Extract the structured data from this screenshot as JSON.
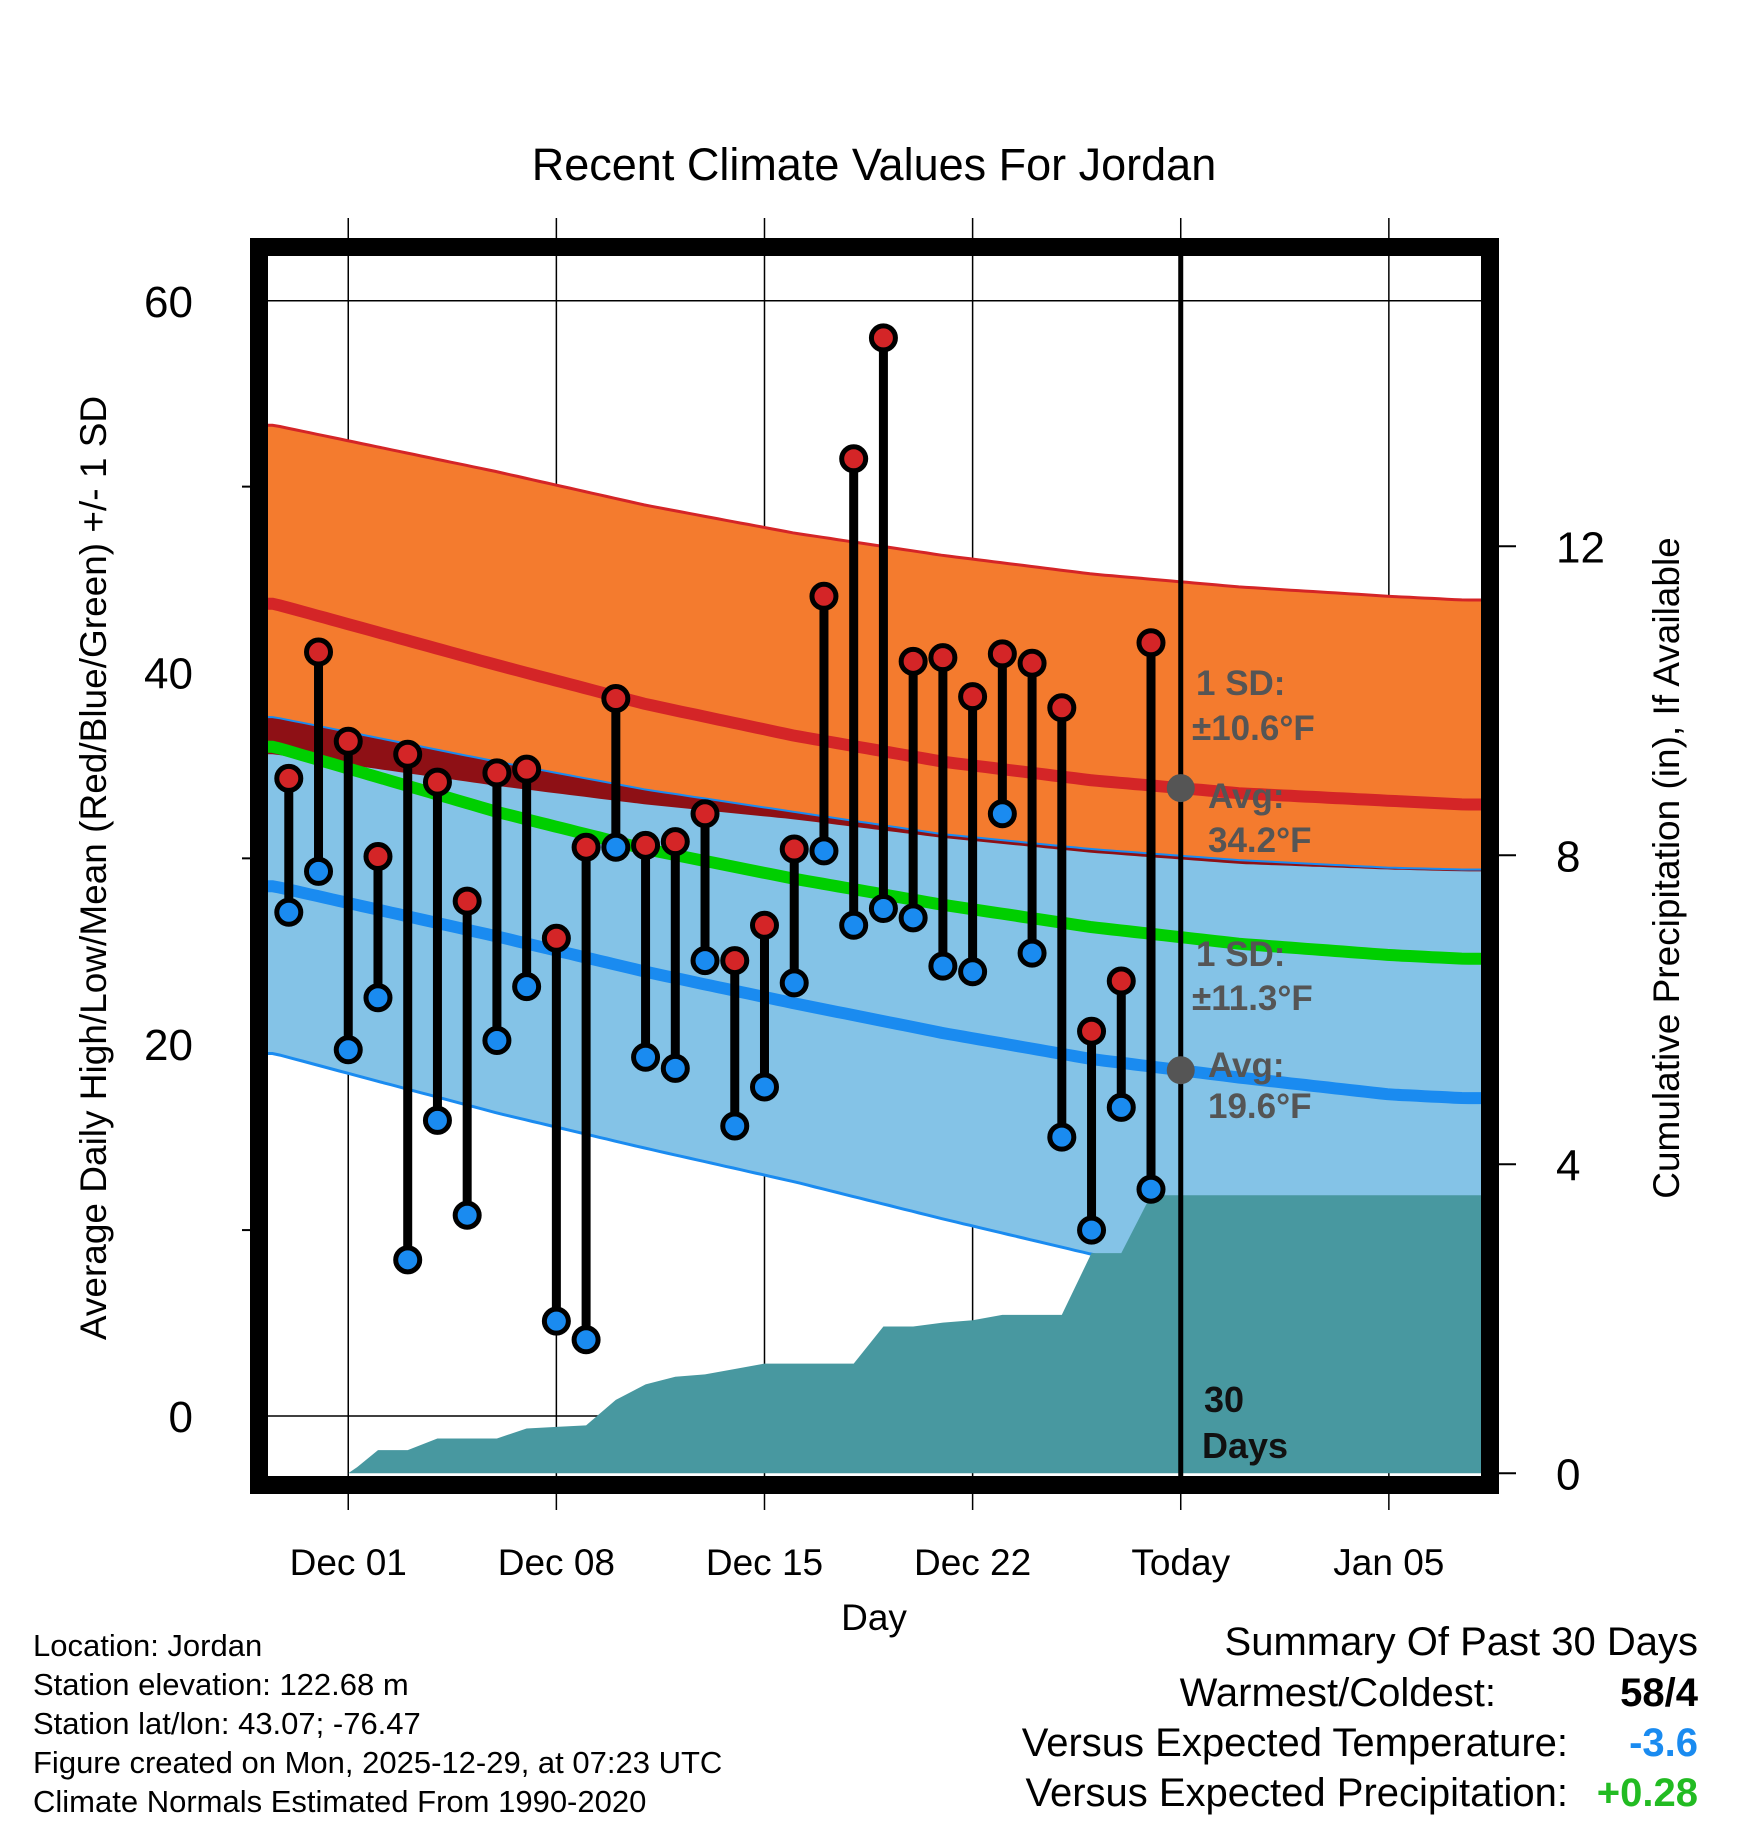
{
  "chart_data": {
    "type": "line",
    "title": "Recent Climate Values For Jordan",
    "xlabel": "Day",
    "ylabel": "Average Daily High/Low/Mean (Red/Blue/Green) +/- 1 SD",
    "y2label": "Cumulative Precipitation (in), If Available",
    "x_tick_labels": [
      {
        "day": 0,
        "label": "Dec 01"
      },
      {
        "day": 7,
        "label": "Dec 08"
      },
      {
        "day": 14,
        "label": "Dec 15"
      },
      {
        "day": 21,
        "label": "Dec 22"
      },
      {
        "day": 28,
        "label": "Today"
      },
      {
        "day": 35,
        "label": "Jan 05"
      }
    ],
    "xlim": [
      -2.8,
      38.2
    ],
    "ylim": [
      -3.5,
      63
    ],
    "y_ticks": [
      0,
      20,
      40,
      60
    ],
    "y2lim": [
      -0.1,
      15.9
    ],
    "y2_ticks": [
      0,
      4,
      8,
      12
    ],
    "today_day": 28,
    "days_observed": [
      -2,
      -1,
      0,
      1,
      2,
      3,
      4,
      5,
      6,
      7,
      8,
      9,
      10,
      11,
      12,
      13,
      14,
      15,
      16,
      17,
      18,
      19,
      20,
      21,
      22,
      23,
      24,
      25,
      26,
      27
    ],
    "daily_high": [
      34.3,
      41.1,
      36.3,
      30.1,
      35.6,
      34.1,
      27.7,
      34.6,
      34.8,
      25.7,
      30.6,
      38.6,
      30.7,
      30.9,
      32.4,
      24.5,
      26.4,
      30.5,
      44.1,
      51.5,
      58.0,
      40.6,
      40.8,
      38.7,
      41.0,
      40.5,
      38.1,
      20.7,
      23.4,
      41.6
    ],
    "daily_low": [
      27.1,
      29.3,
      19.7,
      22.5,
      8.4,
      15.9,
      10.8,
      20.2,
      23.1,
      5.1,
      4.1,
      30.6,
      19.3,
      18.7,
      24.5,
      15.6,
      17.7,
      23.3,
      30.4,
      26.4,
      27.3,
      26.8,
      24.2,
      23.9,
      32.4,
      24.9,
      15.0,
      10.0,
      16.6,
      12.2
    ],
    "normals": {
      "days": [
        -2.5,
        5,
        10,
        15,
        20,
        25,
        30,
        35,
        37.5
      ],
      "high_avg": [
        43.7,
        40.4,
        38.3,
        36.6,
        35.2,
        34.2,
        33.5,
        33.1,
        32.9
      ],
      "high_upper": [
        53.3,
        50.8,
        49.0,
        47.5,
        46.3,
        45.3,
        44.6,
        44.1,
        43.9
      ],
      "high_lower": [
        35.6,
        33.9,
        32.9,
        32.1,
        31.1,
        30.3,
        29.7,
        29.4,
        29.3
      ],
      "mean_avg": [
        36.0,
        32.5,
        30.5,
        28.9,
        27.5,
        26.3,
        25.4,
        24.8,
        24.6
      ],
      "low_avg": [
        28.5,
        25.8,
        23.9,
        22.2,
        20.6,
        19.2,
        18.2,
        17.3,
        17.1
      ],
      "low_upper": [
        37.6,
        35.2,
        33.7,
        32.5,
        31.3,
        30.5,
        29.9,
        29.5,
        29.4
      ],
      "low_lower": [
        19.5,
        16.3,
        14.4,
        12.6,
        10.6,
        8.7,
        7.1,
        6.0,
        5.6
      ]
    },
    "precip_cumulative": {
      "days": [
        -2.8,
        0,
        0.3,
        1,
        2,
        3,
        4,
        5,
        6,
        7,
        8,
        9,
        10,
        11,
        12,
        13,
        14,
        15,
        16,
        17,
        18,
        19,
        20,
        21,
        22,
        23,
        24,
        25,
        26,
        27,
        28,
        38.2
      ],
      "values": [
        0,
        0,
        0.08,
        0.3,
        0.3,
        0.45,
        0.45,
        0.45,
        0.58,
        0.6,
        0.62,
        0.95,
        1.15,
        1.25,
        1.28,
        1.35,
        1.42,
        1.42,
        1.42,
        1.42,
        1.9,
        1.9,
        1.95,
        1.98,
        2.05,
        2.05,
        2.05,
        2.85,
        2.85,
        3.6,
        3.6,
        3.6
      ]
    },
    "annotations": {
      "high_sd_label": "1 SD:",
      "high_sd_value": "±10.6°F",
      "high_avg_label": "Avg:",
      "high_avg_value": "34.2°F",
      "low_sd_label": "1 SD:",
      "low_sd_value": "±11.3°F",
      "low_avg_label": "Avg:",
      "low_avg_value": "19.6°F",
      "days_count": "30",
      "days_word": "Days"
    },
    "colors": {
      "high_band": "#f47b2e",
      "high_line": "#d42527",
      "overlap_band": "#8e1015",
      "low_band": "#84c3e7",
      "low_line": "#1a8bf0",
      "mean_line": "#00cf00",
      "precip": "#4898a0",
      "high_marker": "#d42527",
      "low_marker": "#1a8bf0",
      "annotation": "#555555"
    }
  },
  "info": {
    "location": "Location: Jordan",
    "elevation": "Station elevation: 122.68 m",
    "latlon": "Station lat/lon: 43.07; -76.47",
    "created": "Figure created on Mon, 2025-12-29, at 07:23 UTC",
    "normals": "Climate Normals Estimated From 1990-2020"
  },
  "summary": {
    "title": "Summary Of Past 30 Days",
    "warmest_label": "Warmest/Coldest:",
    "warmest_value": "58",
    "coldest_value": "4",
    "temp_label": "Versus Expected Temperature:",
    "temp_value": "-3.6",
    "temp_color": "#1a8bf0",
    "precip_label": "Versus Expected Precipitation:",
    "precip_value": "+0.28",
    "precip_color": "#22bb22"
  }
}
